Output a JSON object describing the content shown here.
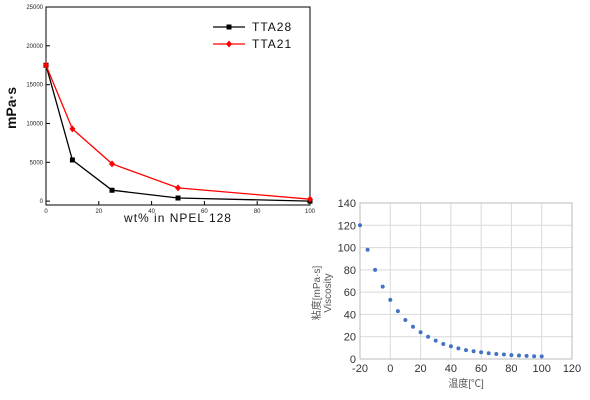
{
  "chart_data": [
    {
      "type": "line",
      "ylabel": "mPa·s",
      "xlabel": "wt% in NPEL 128",
      "xlim": [
        0,
        100
      ],
      "ylim": [
        -500,
        25000
      ],
      "x_ticks": [
        "0",
        "20",
        "40",
        "60",
        "80",
        "100"
      ],
      "y_ticks": [
        {
          "value": 0,
          "label": "0"
        },
        {
          "value": 5000,
          "label": "5000"
        },
        {
          "value": 10000,
          "label": "10000"
        },
        {
          "value": 15000,
          "label": "15000"
        },
        {
          "value": 20000,
          "label": "20000"
        },
        {
          "value": 25000,
          "label": "25000"
        }
      ],
      "grid": false,
      "legend": "top-right",
      "series": [
        {
          "name": "TTA28",
          "color": "#000000",
          "marker": "square",
          "x": [
            0,
            10,
            25,
            50,
            100
          ],
          "values": [
            17500,
            5300,
            1400,
            400,
            0
          ]
        },
        {
          "name": "TTA21",
          "color": "#ff0000",
          "marker": "diamond",
          "x": [
            0,
            10,
            25,
            50,
            100
          ],
          "values": [
            17500,
            9300,
            4800,
            1700,
            250
          ]
        }
      ]
    },
    {
      "type": "scatter",
      "ylabel_lines": [
        "粘度[mPa·s]",
        "Viscosity"
      ],
      "xlabel": "温度[℃]",
      "xlim": [
        -20,
        120
      ],
      "ylim": [
        0,
        140
      ],
      "x_ticks": [
        -20,
        0,
        20,
        40,
        60,
        80,
        100,
        120
      ],
      "y_ticks": [
        0,
        20,
        40,
        60,
        80,
        100,
        120,
        140
      ],
      "grid": true,
      "series": [
        {
          "color": "#4472c4",
          "x": [
            -20,
            -15,
            -10,
            -5,
            0,
            5,
            10,
            15,
            20,
            25,
            30,
            35,
            40,
            45,
            50,
            55,
            60,
            65,
            70,
            75,
            80,
            85,
            90,
            95,
            100
          ],
          "values": [
            120,
            98,
            80,
            65,
            53,
            43,
            35,
            29,
            24,
            20,
            16.5,
            13.5,
            11.5,
            9.5,
            8,
            7,
            6,
            5.2,
            4.5,
            4,
            3.5,
            3.1,
            2.8,
            2.5,
            2.3
          ]
        }
      ]
    }
  ]
}
